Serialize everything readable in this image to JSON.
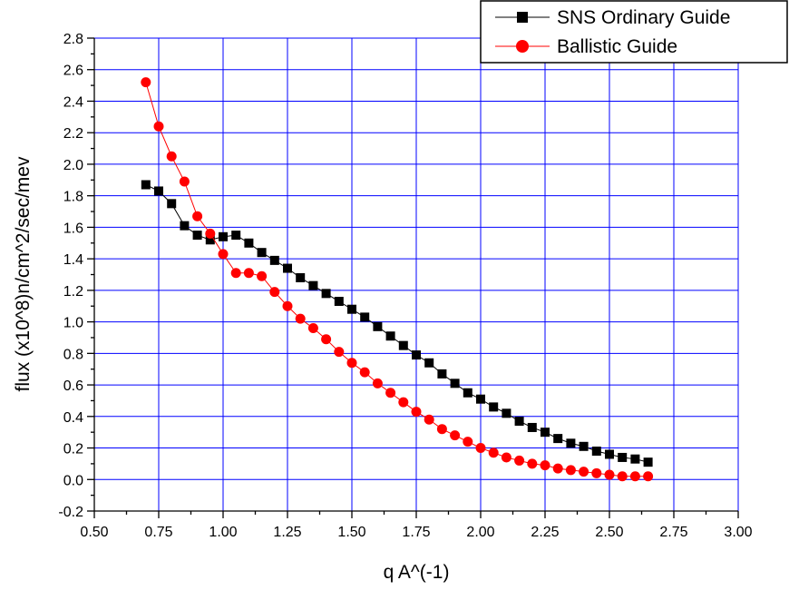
{
  "chart_data": {
    "type": "scatter",
    "xlabel": "q A^(-1)",
    "ylabel": "flux (x10^8)n/cm^2/sec/mev",
    "xlim": [
      0.5,
      3.0
    ],
    "ylim": [
      -0.2,
      2.8
    ],
    "x_ticks": [
      "0.50",
      "0.75",
      "1.00",
      "1.25",
      "1.50",
      "1.75",
      "2.00",
      "2.25",
      "2.50",
      "2.75",
      "3.00"
    ],
    "y_ticks": [
      "-0.2",
      "0.0",
      "0.2",
      "0.4",
      "0.6",
      "0.8",
      "1.0",
      "1.2",
      "1.4",
      "1.6",
      "1.8",
      "2.0",
      "2.2",
      "2.4",
      "2.6",
      "2.8"
    ],
    "grid": true,
    "grid_color": "#0000ff",
    "legend_position": "top-right",
    "x": [
      0.7,
      0.75,
      0.8,
      0.85,
      0.9,
      0.95,
      1.0,
      1.05,
      1.1,
      1.15,
      1.2,
      1.25,
      1.3,
      1.35,
      1.4,
      1.45,
      1.5,
      1.55,
      1.6,
      1.65,
      1.7,
      1.75,
      1.8,
      1.85,
      1.9,
      1.95,
      2.0,
      2.05,
      2.1,
      2.15,
      2.2,
      2.25,
      2.3,
      2.35,
      2.4,
      2.45,
      2.5,
      2.55,
      2.6,
      2.65
    ],
    "series": [
      {
        "name": "SNS Ordinary Guide",
        "color": "#000000",
        "marker": "square",
        "values": [
          1.87,
          1.83,
          1.75,
          1.61,
          1.55,
          1.52,
          1.54,
          1.55,
          1.5,
          1.44,
          1.39,
          1.34,
          1.28,
          1.23,
          1.18,
          1.13,
          1.08,
          1.03,
          0.97,
          0.91,
          0.85,
          0.79,
          0.74,
          0.67,
          0.61,
          0.55,
          0.51,
          0.46,
          0.42,
          0.37,
          0.33,
          0.3,
          0.26,
          0.23,
          0.21,
          0.18,
          0.16,
          0.14,
          0.13,
          0.11
        ]
      },
      {
        "name": "Ballistic Guide",
        "color": "#ff0000",
        "marker": "circle",
        "values": [
          2.52,
          2.24,
          2.05,
          1.89,
          1.67,
          1.56,
          1.43,
          1.31,
          1.31,
          1.29,
          1.19,
          1.1,
          1.02,
          0.96,
          0.89,
          0.81,
          0.74,
          0.68,
          0.61,
          0.55,
          0.49,
          0.43,
          0.38,
          0.32,
          0.28,
          0.24,
          0.2,
          0.17,
          0.14,
          0.12,
          0.1,
          0.09,
          0.07,
          0.06,
          0.05,
          0.04,
          0.03,
          0.02,
          0.02,
          0.02
        ]
      }
    ]
  }
}
